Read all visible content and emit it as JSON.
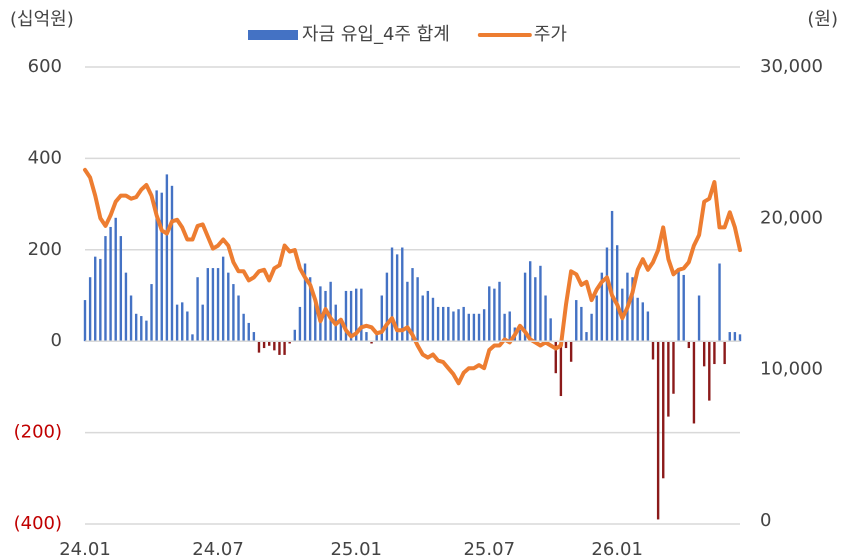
{
  "chart_data": {
    "type": "bar-line",
    "y_label": "(십억원)",
    "y2_label": "(원)",
    "categories": [
      "24.01",
      null,
      null,
      null,
      null,
      null,
      null,
      null,
      null,
      null,
      null,
      null,
      null,
      null,
      null,
      null,
      null,
      null,
      null,
      null,
      null,
      null,
      null,
      null,
      null,
      null,
      "24.07",
      null,
      null,
      null,
      null,
      null,
      null,
      null,
      null,
      null,
      null,
      null,
      null,
      null,
      null,
      null,
      null,
      null,
      null,
      null,
      null,
      null,
      null,
      null,
      null,
      null,
      null,
      "25.01",
      null,
      null,
      null,
      null,
      null,
      null,
      null,
      null,
      null,
      null,
      null,
      null,
      null,
      null,
      null,
      null,
      null,
      null,
      null,
      null,
      null,
      null,
      null,
      null,
      null,
      "25.07",
      null,
      null,
      null,
      null,
      null,
      null,
      null,
      null,
      null,
      null,
      null,
      null,
      null,
      null,
      null,
      null,
      null,
      null,
      null,
      null,
      null,
      null,
      null,
      null,
      "26.01",
      null,
      null,
      null,
      null,
      null,
      null,
      null,
      null,
      null,
      null,
      null,
      null,
      null,
      null,
      null,
      null,
      null,
      null,
      null,
      null,
      null,
      null,
      null,
      null
    ],
    "series": [
      {
        "name": "자금 유입_4주 합계",
        "type": "bar",
        "color": "#4472c4",
        "negative_color": "#8b1a1a",
        "values": [
          90,
          140,
          185,
          180,
          230,
          250,
          270,
          230,
          150,
          100,
          60,
          55,
          45,
          125,
          330,
          325,
          365,
          340,
          80,
          85,
          65,
          15,
          140,
          80,
          160,
          160,
          160,
          185,
          150,
          125,
          100,
          60,
          40,
          20,
          -25,
          -15,
          -10,
          -20,
          -30,
          -30,
          -5,
          25,
          75,
          170,
          140,
          90,
          120,
          110,
          130,
          80,
          50,
          110,
          110,
          115,
          115,
          20,
          -5,
          15,
          100,
          150,
          205,
          190,
          205,
          130,
          160,
          140,
          100,
          110,
          95,
          75,
          75,
          75,
          65,
          70,
          75,
          60,
          60,
          60,
          70,
          120,
          115,
          130,
          60,
          65,
          30,
          25,
          150,
          175,
          140,
          165,
          100,
          50,
          -70,
          -120,
          -15,
          -45,
          90,
          75,
          20,
          60,
          100,
          150,
          205,
          285,
          210,
          115,
          150,
          140,
          95,
          85,
          65,
          -40,
          -390,
          -300,
          -165,
          -115,
          160,
          145,
          -15,
          -180,
          100,
          -55,
          -130,
          -50,
          170,
          -50,
          20,
          20,
          15
        ]
      },
      {
        "name": "주가",
        "type": "line",
        "axis": "y2",
        "color": "#ed7d31",
        "values": [
          23200,
          22700,
          21500,
          20000,
          19500,
          20200,
          21100,
          21500,
          21500,
          21300,
          21400,
          21900,
          22200,
          21500,
          20200,
          19200,
          19000,
          19800,
          19900,
          19400,
          18600,
          18600,
          19500,
          19600,
          18800,
          18000,
          18200,
          18600,
          18200,
          17100,
          16500,
          16500,
          15900,
          16100,
          16500,
          16600,
          15900,
          16700,
          16900,
          18200,
          17800,
          17900,
          16700,
          16100,
          15600,
          14600,
          13200,
          14000,
          13400,
          13000,
          13300,
          12600,
          12200,
          12400,
          12800,
          12900,
          12800,
          12400,
          12500,
          13000,
          13400,
          12600,
          12600,
          12800,
          12300,
          11600,
          11000,
          10800,
          11000,
          10600,
          10500,
          10100,
          9700,
          9100,
          9800,
          10100,
          10100,
          10300,
          10100,
          11300,
          11600,
          11600,
          12000,
          11800,
          12300,
          12900,
          12500,
          12000,
          11800,
          11600,
          11800,
          11600,
          11400,
          11600,
          14300,
          16500,
          16300,
          15600,
          15800,
          14600,
          15300,
          15800,
          16100,
          14900,
          14300,
          13400,
          14100,
          15100,
          16600,
          17300,
          16600,
          17100,
          17900,
          19400,
          17300,
          16300,
          16600,
          16700,
          17100,
          18200,
          18900,
          21100,
          21300,
          22400,
          19400,
          19400,
          20400,
          19400,
          17900
        ]
      }
    ],
    "ylim": [
      -400,
      600
    ],
    "yticks": [
      {
        "value": -400,
        "label": "(400)"
      },
      {
        "value": -200,
        "label": "(200)"
      },
      0,
      200,
      400,
      600
    ],
    "negative_tick_color": "#c00000",
    "y2lim": [
      0,
      30000
    ],
    "y2ticks": [
      0,
      {
        "value": 10000,
        "label": "10,000"
      },
      {
        "value": 20000,
        "label": "20,000"
      },
      {
        "value": 30000,
        "label": "30,000"
      }
    ],
    "grid": true,
    "legend": "top"
  }
}
